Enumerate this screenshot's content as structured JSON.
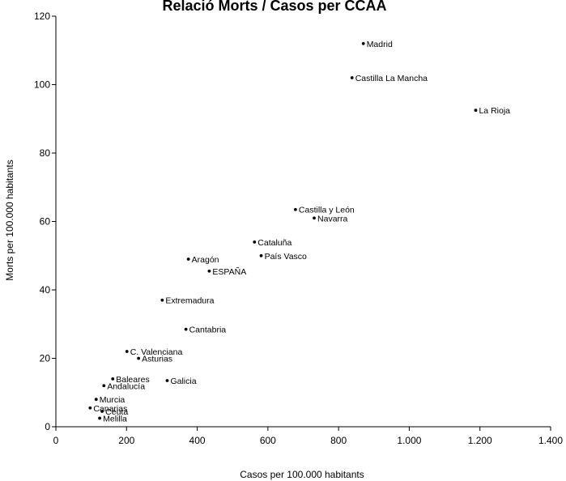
{
  "chart_data": {
    "type": "scatter",
    "title": "Relació Morts / Casos per CCAA",
    "xlabel": "Casos per 100.000 habitants",
    "ylabel": "Morts per 100.000 habitants",
    "xlim": [
      0,
      1400
    ],
    "ylim": [
      0,
      120
    ],
    "x_ticks": [
      0,
      200,
      400,
      600,
      800,
      1000,
      1200,
      1400
    ],
    "x_tick_labels": [
      "0",
      "200",
      "400",
      "600",
      "800",
      "1.000",
      "1.200",
      "1.400"
    ],
    "y_ticks": [
      0,
      20,
      40,
      60,
      80,
      100,
      120
    ],
    "y_tick_labels": [
      "0",
      "20",
      "40",
      "60",
      "80",
      "100",
      "120"
    ],
    "grid": false,
    "points": [
      {
        "label": "Madrid",
        "x": 870,
        "y": 112
      },
      {
        "label": "Castilla La Mancha",
        "x": 838,
        "y": 102
      },
      {
        "label": "La Rioja",
        "x": 1188,
        "y": 92.5
      },
      {
        "label": "Castilla y León",
        "x": 678,
        "y": 63.5
      },
      {
        "label": "Navarra",
        "x": 731,
        "y": 61
      },
      {
        "label": "Cataluña",
        "x": 562,
        "y": 54
      },
      {
        "label": "País Vasco",
        "x": 581,
        "y": 50
      },
      {
        "label": "Aragón",
        "x": 375,
        "y": 49
      },
      {
        "label": "ESPAÑA",
        "x": 434,
        "y": 45.5
      },
      {
        "label": "Extremadura",
        "x": 301,
        "y": 37
      },
      {
        "label": "Cantabria",
        "x": 368,
        "y": 28.5
      },
      {
        "label": "C. Valenciana",
        "x": 201,
        "y": 22
      },
      {
        "label": "Asturias",
        "x": 234,
        "y": 20
      },
      {
        "label": "Baleares",
        "x": 161,
        "y": 14
      },
      {
        "label": "Galicia",
        "x": 315,
        "y": 13.5
      },
      {
        "label": "Andalucía",
        "x": 136,
        "y": 12
      },
      {
        "label": "Murcia",
        "x": 114,
        "y": 8
      },
      {
        "label": "Canarias",
        "x": 97,
        "y": 5.5
      },
      {
        "label": "Ceuta",
        "x": 131,
        "y": 4.5
      },
      {
        "label": "Melilla",
        "x": 124,
        "y": 2.5
      }
    ]
  }
}
